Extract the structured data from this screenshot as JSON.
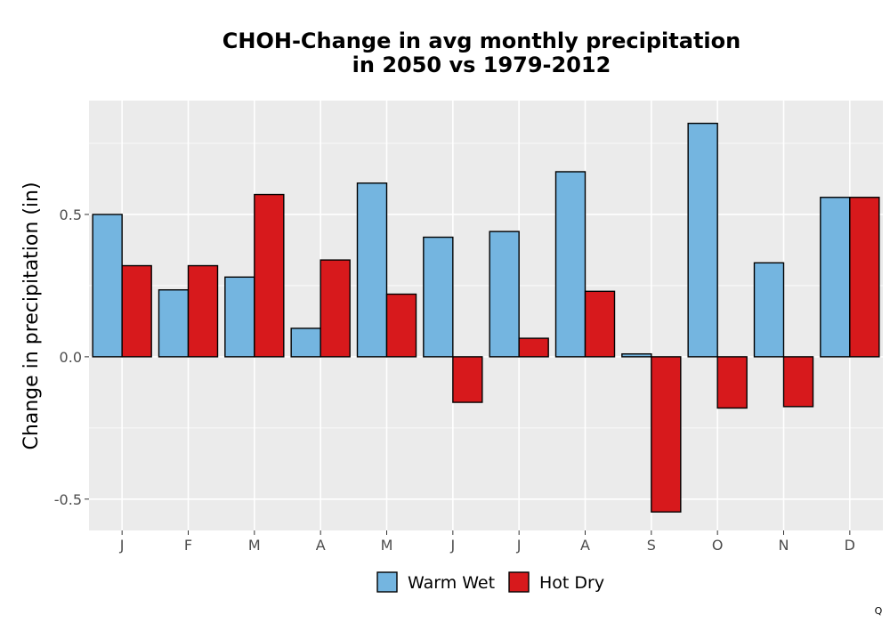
{
  "chart_data": {
    "type": "bar",
    "title_lines": [
      "CHOH-Change in avg monthly precipitation",
      "in 2050 vs 1979-2012"
    ],
    "xlabel": "",
    "ylabel": "Change in precipitation (in)",
    "categories": [
      "J",
      "F",
      "M",
      "A",
      "M",
      "J",
      "J",
      "A",
      "S",
      "O",
      "N",
      "D"
    ],
    "series": [
      {
        "name": "Warm Wet",
        "color": "#74b5e0",
        "values": [
          0.5,
          0.235,
          0.28,
          0.1,
          0.61,
          0.42,
          0.44,
          0.65,
          0.01,
          0.82,
          0.33,
          0.56
        ]
      },
      {
        "name": "Hot Dry",
        "color": "#d7191c",
        "values": [
          0.32,
          0.32,
          0.57,
          0.34,
          0.22,
          -0.16,
          0.065,
          0.23,
          -0.545,
          -0.18,
          -0.175,
          0.56
        ]
      }
    ],
    "yticks": [
      -0.5,
      0.0,
      0.5
    ],
    "ytick_labels": [
      "-0.5",
      "0.0",
      "0.5"
    ],
    "ylim": [
      -0.61,
      0.9
    ],
    "grid": true,
    "legend_position": "bottom",
    "panel_background": "#ebebeb",
    "grid_color": "#ffffff"
  },
  "corner_mark": "Q"
}
